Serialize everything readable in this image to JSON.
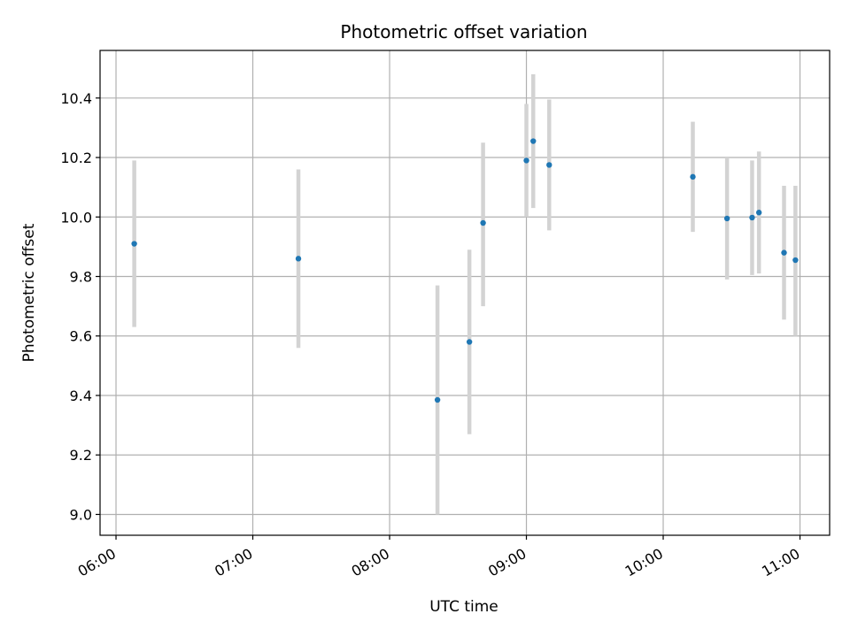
{
  "chart_data": {
    "type": "scatter",
    "title": "Photometric offset variation",
    "xlabel": "UTC time",
    "ylabel": "Photometric offset",
    "xlim": [
      "05:53",
      "11:13"
    ],
    "ylim": [
      8.93,
      10.56
    ],
    "grid": true,
    "x_ticks": [
      "06:00",
      "07:00",
      "08:00",
      "09:00",
      "10:00",
      "11:00"
    ],
    "y_ticks": [
      9.0,
      9.2,
      9.4,
      9.6,
      9.8,
      10.0,
      10.2,
      10.4
    ],
    "y_tick_labels": [
      "9.0",
      "9.2",
      "9.4",
      "9.6",
      "9.8",
      "10.0",
      "10.2",
      "10.4"
    ],
    "colors": {
      "point": "#1f77b4",
      "errorbar": "#d3d3d3",
      "grid": "#b0b0b0"
    },
    "points": [
      {
        "x": "06:08",
        "y": 9.91,
        "lo": 9.63,
        "hi": 10.19
      },
      {
        "x": "07:20",
        "y": 9.86,
        "lo": 9.56,
        "hi": 10.16
      },
      {
        "x": "08:21",
        "y": 9.385,
        "lo": 9.0,
        "hi": 9.77
      },
      {
        "x": "08:35",
        "y": 9.58,
        "lo": 9.27,
        "hi": 9.89
      },
      {
        "x": "08:41",
        "y": 9.98,
        "lo": 9.7,
        "hi": 10.25
      },
      {
        "x": "09:00",
        "y": 10.19,
        "lo": 10.0,
        "hi": 10.38
      },
      {
        "x": "09:03",
        "y": 10.255,
        "lo": 10.03,
        "hi": 10.48
      },
      {
        "x": "09:10",
        "y": 10.175,
        "lo": 9.955,
        "hi": 10.395
      },
      {
        "x": "10:13",
        "y": 10.135,
        "lo": 9.95,
        "hi": 10.32
      },
      {
        "x": "10:28",
        "y": 9.995,
        "lo": 9.79,
        "hi": 10.2
      },
      {
        "x": "10:39",
        "y": 9.998,
        "lo": 9.805,
        "hi": 10.19
      },
      {
        "x": "10:42",
        "y": 10.015,
        "lo": 9.81,
        "hi": 10.22
      },
      {
        "x": "10:53",
        "y": 9.88,
        "lo": 9.655,
        "hi": 10.105
      },
      {
        "x": "10:58",
        "y": 9.855,
        "lo": 9.6,
        "hi": 10.105
      }
    ]
  }
}
